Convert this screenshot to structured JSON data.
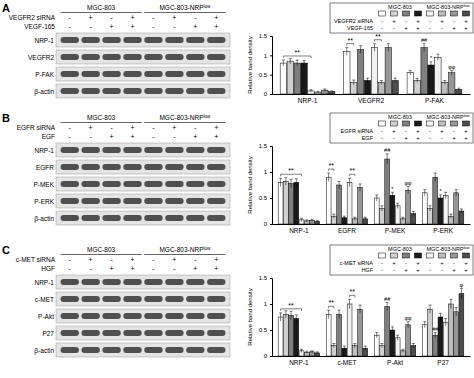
{
  "chart_data": [
    {
      "panel": "A",
      "type": "bar",
      "cell_lines": [
        {
          "text": "MGC-803"
        },
        {
          "text": "MGC-803-NRP",
          "sup": "low"
        }
      ],
      "treatments": [
        {
          "label": "VEGFR2 siRNA",
          "signs": [
            "-",
            "+",
            "-",
            "+",
            "-",
            "+",
            "-",
            "+"
          ]
        },
        {
          "label": "VEGF-165",
          "signs": [
            "-",
            "-",
            "+",
            "+",
            "-",
            "-",
            "+",
            "+"
          ]
        }
      ],
      "blot_rows": [
        "NRP-1",
        "VEGFR2",
        "P-FAK",
        "β-actin"
      ],
      "categories": [
        "NRP-1",
        "VEGFR2",
        "P-FAK"
      ],
      "ylabel": "Relative band density",
      "ylim": [
        0,
        1.5
      ],
      "yticks": [
        0,
        0.5,
        1,
        1.5
      ],
      "series": [
        {
          "color": "#ffffff",
          "values": [
            0.8,
            1.1,
            0.55
          ],
          "errors": [
            0.08,
            0.1,
            0.06
          ]
        },
        {
          "color": "#d0d0d0",
          "values": [
            0.85,
            0.3,
            0.35
          ],
          "errors": [
            0.07,
            0.06,
            0.05
          ]
        },
        {
          "color": "#7f7f7f",
          "values": [
            0.8,
            1.15,
            1.2
          ],
          "errors": [
            0.08,
            0.1,
            0.1
          ]
        },
        {
          "color": "#1a1a1a",
          "values": [
            0.8,
            0.35,
            0.75
          ],
          "errors": [
            0.07,
            0.06,
            0.08
          ]
        },
        {
          "color": "#f2f2f2",
          "values": [
            0.08,
            1.2,
            0.95
          ],
          "errors": [
            0.03,
            0.1,
            0.08
          ]
        },
        {
          "color": "#bdbdbd",
          "values": [
            0.05,
            0.3,
            0.3
          ],
          "errors": [
            0.02,
            0.05,
            0.05
          ]
        },
        {
          "color": "#969696",
          "values": [
            0.1,
            1.2,
            0.55
          ],
          "errors": [
            0.03,
            0.1,
            0.06
          ]
        },
        {
          "color": "#4d4d4d",
          "values": [
            0.06,
            0.35,
            0.12
          ],
          "errors": [
            0.02,
            0.06,
            0.03
          ]
        }
      ],
      "annotations": [
        {
          "text": "**",
          "category": 0,
          "bars": [
            0,
            4
          ]
        },
        {
          "text": "**",
          "category": 1,
          "bars": [
            0,
            1
          ]
        },
        {
          "text": "**",
          "category": 1,
          "bars": [
            4,
            5
          ]
        },
        {
          "text": "##",
          "category": 2,
          "bar": 2
        },
        {
          "text": "*",
          "category": 2,
          "bar": 3
        },
        {
          "text": "φφ",
          "category": 2,
          "bar": 6
        }
      ]
    },
    {
      "panel": "B",
      "type": "bar",
      "cell_lines": [
        {
          "text": "MGC-803"
        },
        {
          "text": "MGC-803-NRP",
          "sup": "low"
        }
      ],
      "treatments": [
        {
          "label": "EGFR siRNA",
          "signs": [
            "-",
            "+",
            "-",
            "+",
            "-",
            "+",
            "-",
            "+"
          ]
        },
        {
          "label": "EGF",
          "signs": [
            "-",
            "-",
            "+",
            "+",
            "-",
            "-",
            "+",
            "+"
          ]
        }
      ],
      "blot_rows": [
        "NRP-1",
        "EGFR",
        "P-MEK",
        "P-ERK",
        "β-actin"
      ],
      "categories": [
        "NRP-1",
        "EGFR",
        "P-MEK",
        "P-ERK"
      ],
      "ylabel": "Relative band density",
      "ylim": [
        0,
        1.5
      ],
      "yticks": [
        0,
        0.5,
        1,
        1.5
      ],
      "series": [
        {
          "color": "#ffffff",
          "values": [
            0.8,
            0.9,
            0.5,
            0.6
          ],
          "errors": [
            0.08,
            0.08,
            0.06,
            0.06
          ]
        },
        {
          "color": "#d0d0d0",
          "values": [
            0.82,
            0.15,
            0.3,
            0.3
          ],
          "errors": [
            0.07,
            0.04,
            0.05,
            0.05
          ]
        },
        {
          "color": "#7f7f7f",
          "values": [
            0.78,
            0.75,
            1.25,
            0.9
          ],
          "errors": [
            0.08,
            0.07,
            0.1,
            0.08
          ]
        },
        {
          "color": "#1a1a1a",
          "values": [
            0.8,
            0.12,
            0.55,
            0.5
          ],
          "errors": [
            0.07,
            0.03,
            0.06,
            0.06
          ]
        },
        {
          "color": "#f2f2f2",
          "values": [
            0.08,
            0.8,
            0.35,
            0.55
          ],
          "errors": [
            0.03,
            0.08,
            0.05,
            0.06
          ]
        },
        {
          "color": "#bdbdbd",
          "values": [
            0.06,
            0.1,
            0.1,
            0.15
          ],
          "errors": [
            0.02,
            0.03,
            0.03,
            0.04
          ]
        },
        {
          "color": "#969696",
          "values": [
            0.07,
            0.7,
            0.65,
            0.6
          ],
          "errors": [
            0.02,
            0.07,
            0.07,
            0.06
          ]
        },
        {
          "color": "#4d4d4d",
          "values": [
            0.05,
            0.1,
            0.2,
            0.25
          ],
          "errors": [
            0.02,
            0.03,
            0.04,
            0.04
          ]
        }
      ],
      "annotations": [
        {
          "text": "**",
          "category": 0,
          "bars": [
            0,
            4
          ]
        },
        {
          "text": "**",
          "category": 1,
          "bars": [
            0,
            1
          ]
        },
        {
          "text": "**",
          "category": 1,
          "bars": [
            4,
            5
          ]
        },
        {
          "text": "##",
          "category": 2,
          "bar": 2
        },
        {
          "text": "*",
          "category": 2,
          "bar": 3
        },
        {
          "text": "φφ",
          "category": 2,
          "bar": 6
        },
        {
          "text": "*",
          "category": 3,
          "bar": 3
        }
      ]
    },
    {
      "panel": "C",
      "type": "bar",
      "cell_lines": [
        {
          "text": "MGC-803"
        },
        {
          "text": "MGC-803-NRP",
          "sup": "low"
        }
      ],
      "treatments": [
        {
          "label": "c-MET siRNA",
          "signs": [
            "-",
            "+",
            "-",
            "+",
            "-",
            "+",
            "-",
            "+"
          ]
        },
        {
          "label": "HGF",
          "signs": [
            "-",
            "-",
            "+",
            "+",
            "-",
            "-",
            "+",
            "+"
          ]
        }
      ],
      "blot_rows": [
        "NRP-1",
        "c-MET",
        "P-Akt",
        "P27",
        "β-actin"
      ],
      "categories": [
        "NRP-1",
        "c-MET",
        "P-Akt",
        "P27"
      ],
      "ylabel": "Relative band density",
      "ylim": [
        0,
        1.5
      ],
      "yticks": [
        0,
        0.5,
        1,
        1.5
      ],
      "series": [
        {
          "color": "#ffffff",
          "values": [
            0.75,
            0.8,
            0.4,
            0.6
          ],
          "errors": [
            0.08,
            0.08,
            0.05,
            0.06
          ]
        },
        {
          "color": "#d0d0d0",
          "values": [
            0.8,
            0.2,
            0.2,
            0.9
          ],
          "errors": [
            0.07,
            0.04,
            0.04,
            0.08
          ]
        },
        {
          "color": "#7f7f7f",
          "values": [
            0.78,
            0.8,
            0.95,
            0.4
          ],
          "errors": [
            0.08,
            0.08,
            0.08,
            0.05
          ]
        },
        {
          "color": "#1a1a1a",
          "values": [
            0.72,
            0.15,
            0.5,
            0.75
          ],
          "errors": [
            0.07,
            0.04,
            0.06,
            0.07
          ]
        },
        {
          "color": "#f2f2f2",
          "values": [
            0.1,
            1.0,
            0.35,
            0.65
          ],
          "errors": [
            0.03,
            0.09,
            0.05,
            0.07
          ]
        },
        {
          "color": "#bdbdbd",
          "values": [
            0.07,
            0.2,
            0.1,
            1.0
          ],
          "errors": [
            0.02,
            0.04,
            0.03,
            0.09
          ]
        },
        {
          "color": "#969696",
          "values": [
            0.08,
            0.9,
            0.6,
            0.85
          ],
          "errors": [
            0.02,
            0.08,
            0.06,
            0.08
          ]
        },
        {
          "color": "#4d4d4d",
          "values": [
            0.06,
            0.15,
            0.2,
            1.2
          ],
          "errors": [
            0.02,
            0.04,
            0.04,
            0.1
          ]
        }
      ],
      "annotations": [
        {
          "text": "**",
          "category": 0,
          "bars": [
            0,
            4
          ]
        },
        {
          "text": "**",
          "category": 1,
          "bars": [
            0,
            1
          ]
        },
        {
          "text": "**",
          "category": 1,
          "bars": [
            4,
            5
          ]
        },
        {
          "text": "##",
          "category": 2,
          "bar": 2
        },
        {
          "text": "φφ",
          "category": 2,
          "bar": 6
        },
        {
          "text": "##",
          "category": 3,
          "bar": 2
        },
        {
          "text": "φ",
          "category": 3,
          "bar": 7
        }
      ]
    }
  ]
}
